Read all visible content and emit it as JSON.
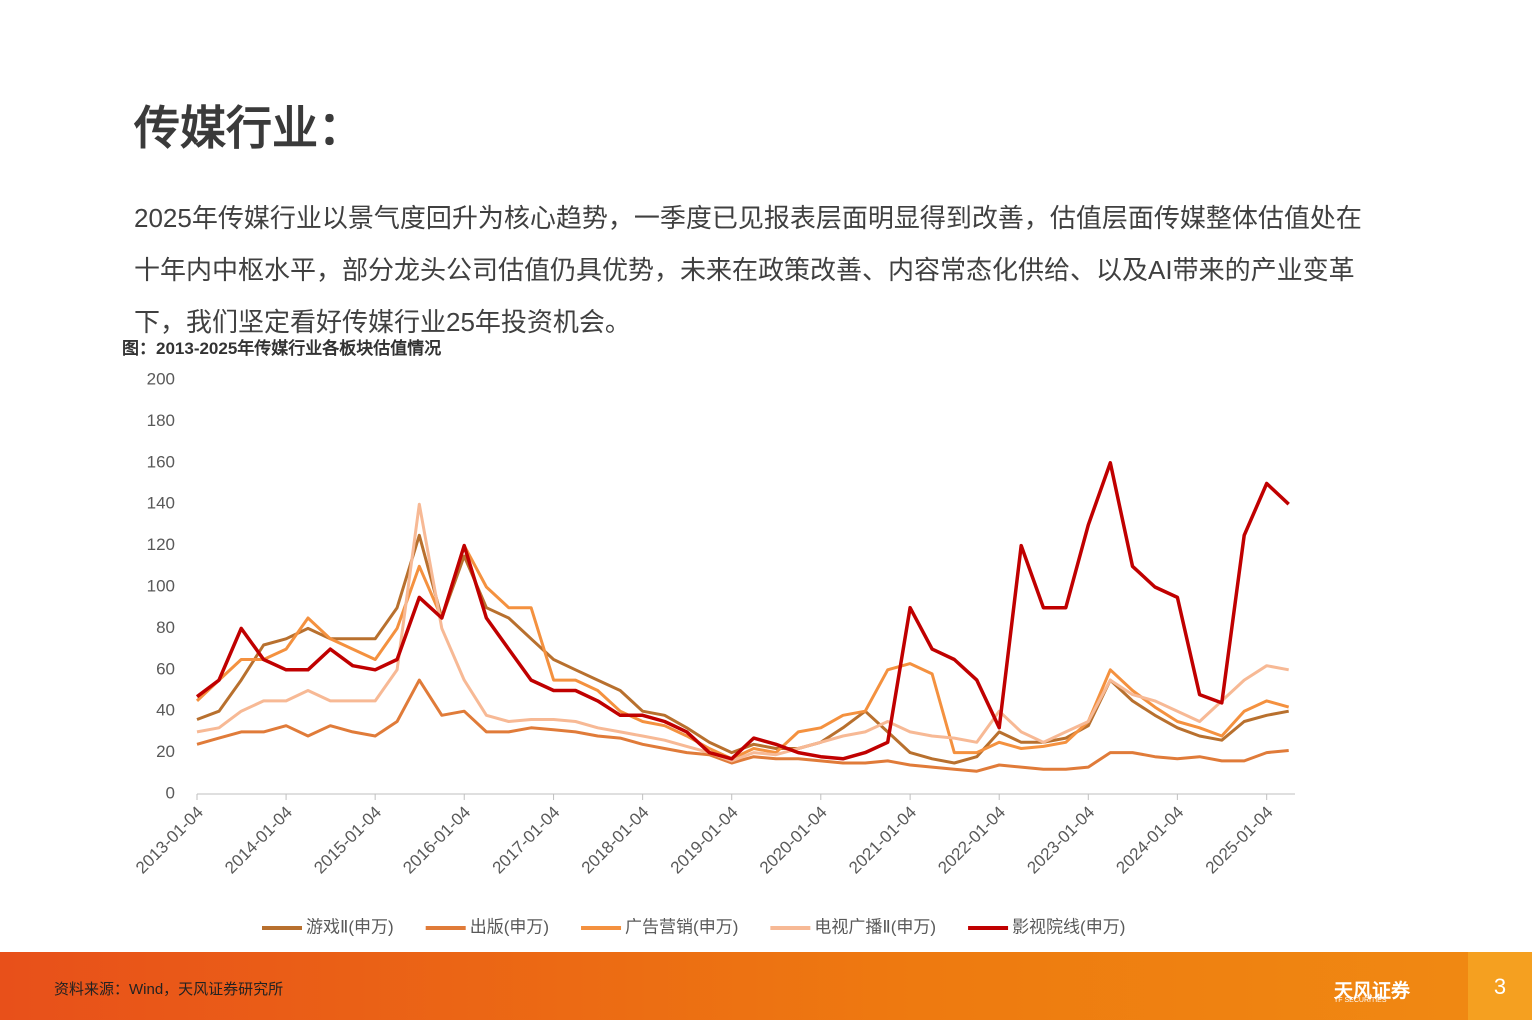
{
  "header": {
    "title": "传媒行业："
  },
  "paragraph": "2025年传媒行业以景气度回升为核心趋势，一季度已见报表层面明显得到改善，估值层面传媒整体估值处在十年内中枢水平，部分龙头公司估值仍具优势，未来在政策改善、内容常态化供给、以及AI带来的产业变革下，我们坚定看好传媒行业25年投资机会。",
  "chart_data": {
    "type": "line",
    "title": "图：2013-2025年传媒行业各板块估值情况",
    "x": [
      "2013-01-04",
      "2013-04-04",
      "2013-07-04",
      "2013-10-04",
      "2014-01-04",
      "2014-04-04",
      "2014-07-04",
      "2014-10-04",
      "2015-01-04",
      "2015-04-04",
      "2015-07-04",
      "2015-10-04",
      "2016-01-04",
      "2016-04-04",
      "2016-07-04",
      "2016-10-04",
      "2017-01-04",
      "2017-04-04",
      "2017-07-04",
      "2017-10-04",
      "2018-01-04",
      "2018-04-04",
      "2018-07-04",
      "2018-10-04",
      "2019-01-04",
      "2019-04-04",
      "2019-07-04",
      "2019-10-04",
      "2020-01-04",
      "2020-04-04",
      "2020-07-04",
      "2020-10-04",
      "2021-01-04",
      "2021-04-04",
      "2021-07-04",
      "2021-10-04",
      "2022-01-04",
      "2022-04-04",
      "2022-07-04",
      "2022-10-04",
      "2023-01-04",
      "2023-04-04",
      "2023-07-04",
      "2023-10-04",
      "2024-01-04",
      "2024-04-04",
      "2024-07-04",
      "2024-10-04",
      "2025-01-04",
      "2025-04-04"
    ],
    "series": [
      {
        "name": "游戏Ⅱ(申万)",
        "color": "#b8702e",
        "values": [
          36,
          40,
          55,
          72,
          75,
          80,
          75,
          75,
          75,
          90,
          125,
          85,
          115,
          90,
          85,
          75,
          65,
          60,
          55,
          50,
          40,
          38,
          32,
          25,
          20,
          24,
          22,
          22,
          25,
          32,
          40,
          30,
          20,
          17,
          15,
          18,
          30,
          25,
          25,
          27,
          33,
          55,
          45,
          38,
          32,
          28,
          26,
          35,
          38,
          40
        ]
      },
      {
        "name": "出版(申万)",
        "color": "#e07b39",
        "values": [
          24,
          27,
          30,
          30,
          33,
          28,
          33,
          30,
          28,
          35,
          55,
          38,
          40,
          30,
          30,
          32,
          31,
          30,
          28,
          27,
          24,
          22,
          20,
          19,
          15,
          18,
          17,
          17,
          16,
          15,
          15,
          16,
          14,
          13,
          12,
          11,
          14,
          13,
          12,
          12,
          13,
          20,
          20,
          18,
          17,
          18,
          16,
          16,
          20,
          21
        ]
      },
      {
        "name": "广告营销(申万)",
        "color": "#f4913f",
        "values": [
          45,
          55,
          65,
          65,
          70,
          85,
          75,
          70,
          65,
          80,
          110,
          85,
          120,
          100,
          90,
          90,
          55,
          55,
          50,
          40,
          35,
          33,
          28,
          22,
          17,
          22,
          20,
          30,
          32,
          38,
          40,
          60,
          63,
          58,
          20,
          20,
          25,
          22,
          23,
          25,
          35,
          60,
          50,
          42,
          35,
          32,
          28,
          40,
          45,
          42
        ]
      },
      {
        "name": "电视广播Ⅱ(申万)",
        "color": "#f7b995",
        "values": [
          30,
          32,
          40,
          45,
          45,
          50,
          45,
          45,
          45,
          60,
          140,
          80,
          55,
          38,
          35,
          36,
          36,
          35,
          32,
          30,
          28,
          26,
          23,
          20,
          16,
          20,
          19,
          22,
          25,
          28,
          30,
          35,
          30,
          28,
          27,
          25,
          40,
          30,
          25,
          30,
          35,
          55,
          48,
          45,
          40,
          35,
          45,
          55,
          62,
          60
        ]
      },
      {
        "name": "影视院线(申万)",
        "color": "#c00000",
        "values": [
          47,
          55,
          80,
          65,
          60,
          60,
          70,
          62,
          60,
          65,
          95,
          85,
          120,
          85,
          70,
          55,
          50,
          50,
          45,
          38,
          38,
          35,
          30,
          20,
          17,
          27,
          24,
          20,
          18,
          17,
          20,
          25,
          90,
          70,
          65,
          55,
          32,
          120,
          90,
          90,
          130,
          160,
          110,
          100,
          95,
          48,
          44,
          125,
          150,
          140
        ]
      }
    ],
    "xlim": [
      "2013-01-04",
      "2025-04-30"
    ],
    "xticks": [
      "2013-01-04",
      "2014-01-04",
      "2015-01-04",
      "2016-01-04",
      "2017-01-04",
      "2018-01-04",
      "2019-01-04",
      "2020-01-04",
      "2021-01-04",
      "2022-01-04",
      "2023-01-04",
      "2024-01-04",
      "2025-01-04"
    ],
    "ylim": [
      0,
      200
    ],
    "yticks": [
      0,
      20,
      40,
      60,
      80,
      100,
      120,
      140,
      160,
      180,
      200
    ],
    "grid": false
  },
  "footer": {
    "source": "资料来源：Wind，天风证券研究所",
    "logo": "天风证券",
    "logo_en": "TF SECURITIES",
    "page": "3"
  }
}
